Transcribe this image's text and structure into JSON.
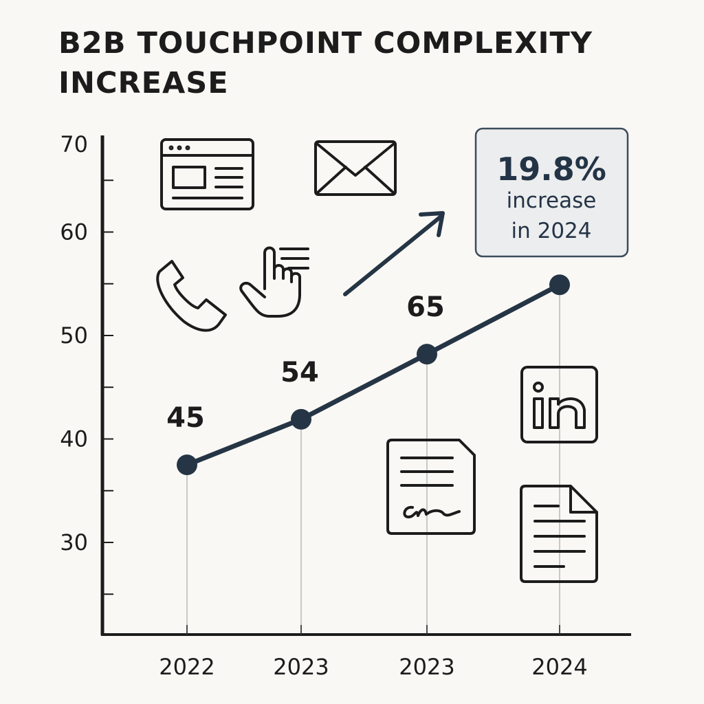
{
  "chart_data": {
    "type": "line",
    "title": "B2B TOUCHPOINT COMPLEXITY INCREASE",
    "xlabel": "",
    "ylabel": "",
    "categories": [
      "2022",
      "2023",
      "2023",
      "2024"
    ],
    "values": [
      37.5,
      41.9,
      48.2,
      54.9
    ],
    "data_labels": [
      "45",
      "54",
      "65",
      ""
    ],
    "yticks": [
      70,
      60,
      50,
      40,
      30
    ],
    "ylim": [
      21,
      69.5
    ],
    "grid": false,
    "line_color": "#253545"
  },
  "callout": {
    "value": "19.8%",
    "line1": "increase",
    "line2": "in 2024"
  },
  "icons": [
    "browser-window-icon",
    "envelope-icon",
    "phone-icon",
    "hand-pointer-icon",
    "trend-arrow-icon",
    "linkedin-icon",
    "signed-document-icon",
    "document-icon"
  ]
}
